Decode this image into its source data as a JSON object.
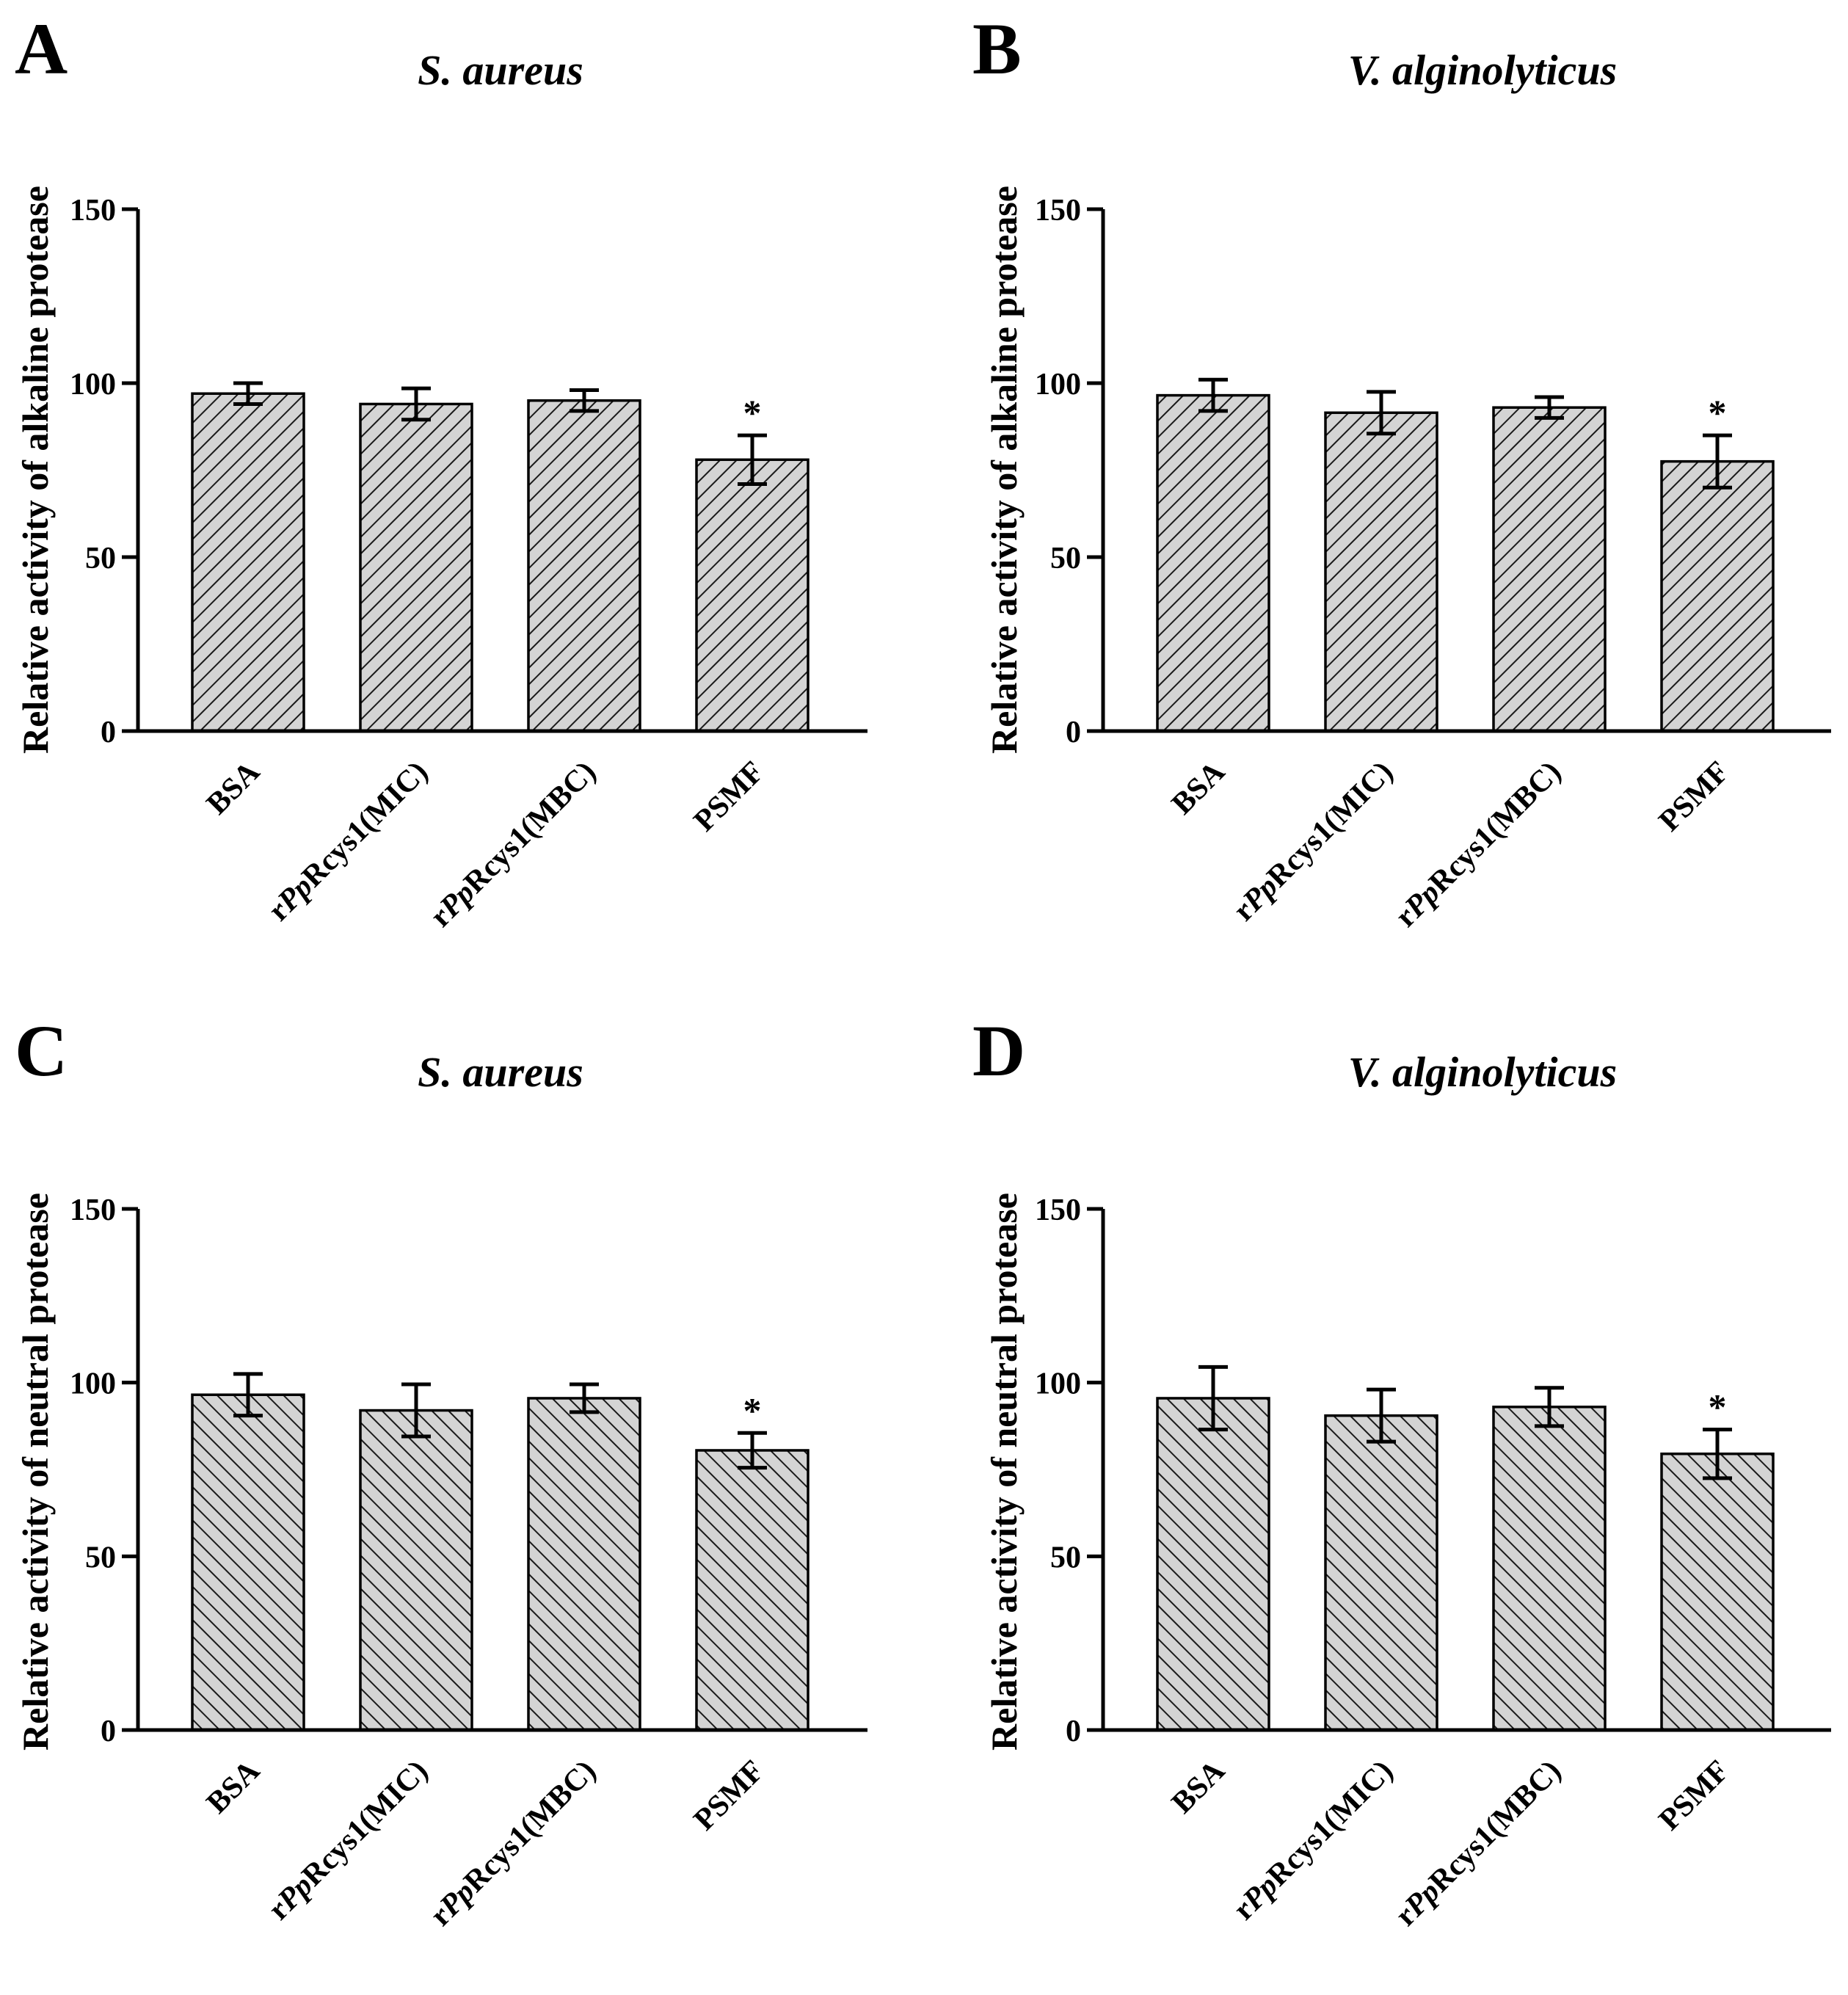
{
  "chart_data": [
    {
      "type": "bar",
      "panel": "A",
      "title": "S. aureus",
      "ylabel": "Relative activity of alkaline protease",
      "xlabel": "",
      "ylim": [
        0,
        150
      ],
      "yticks": [
        0,
        50,
        100,
        150
      ],
      "categories": [
        "BSA",
        "rPpRcys1(MIC)",
        "rPpRcys1(MBC)",
        "PSMF"
      ],
      "values": [
        97,
        94,
        95,
        78
      ],
      "errors": [
        3,
        4.5,
        3,
        7
      ],
      "significance": [
        "",
        "",
        "",
        "*"
      ],
      "hatch": "diagonal-right"
    },
    {
      "type": "bar",
      "panel": "B",
      "title": "V. alginolyticus",
      "ylabel": "Relative activity of alkaline protease",
      "xlabel": "",
      "ylim": [
        0,
        150
      ],
      "yticks": [
        0,
        50,
        100,
        150
      ],
      "categories": [
        "BSA",
        "rPpRcys1(MIC)",
        "rPpRcys1(MBC)",
        "PSMF"
      ],
      "values": [
        96.5,
        91.5,
        93,
        77.5
      ],
      "errors": [
        4.5,
        6,
        3,
        7.5
      ],
      "significance": [
        "",
        "",
        "",
        "*"
      ],
      "hatch": "diagonal-right"
    },
    {
      "type": "bar",
      "panel": "C",
      "title": "S. aureus",
      "ylabel": "Relative activity of neutral protease",
      "xlabel": "",
      "ylim": [
        0,
        150
      ],
      "yticks": [
        0,
        50,
        100,
        150
      ],
      "categories": [
        "BSA",
        "rPpRcys1(MIC)",
        "rPpRcys1(MBC)",
        "PSMF"
      ],
      "values": [
        96.5,
        92,
        95.5,
        80.5
      ],
      "errors": [
        6,
        7.5,
        4,
        5
      ],
      "significance": [
        "",
        "",
        "",
        "*"
      ],
      "hatch": "diagonal-left"
    },
    {
      "type": "bar",
      "panel": "D",
      "title": "V. alginolyticus",
      "ylabel": "Relative activity of neutral protease",
      "xlabel": "",
      "ylim": [
        0,
        150
      ],
      "yticks": [
        0,
        50,
        100,
        150
      ],
      "categories": [
        "BSA",
        "rPpRcys1(MIC)",
        "rPpRcys1(MBC)",
        "PSMF"
      ],
      "values": [
        95.5,
        90.5,
        93,
        79.5
      ],
      "errors": [
        9,
        7.5,
        5.5,
        7
      ],
      "significance": [
        "",
        "",
        "",
        "*"
      ],
      "hatch": "diagonal-left"
    }
  ],
  "colors": {
    "bar_fill": "#d4d4d4",
    "hatch_line": "#1a1a1a",
    "axis": "#000000",
    "background": "#ffffff"
  }
}
